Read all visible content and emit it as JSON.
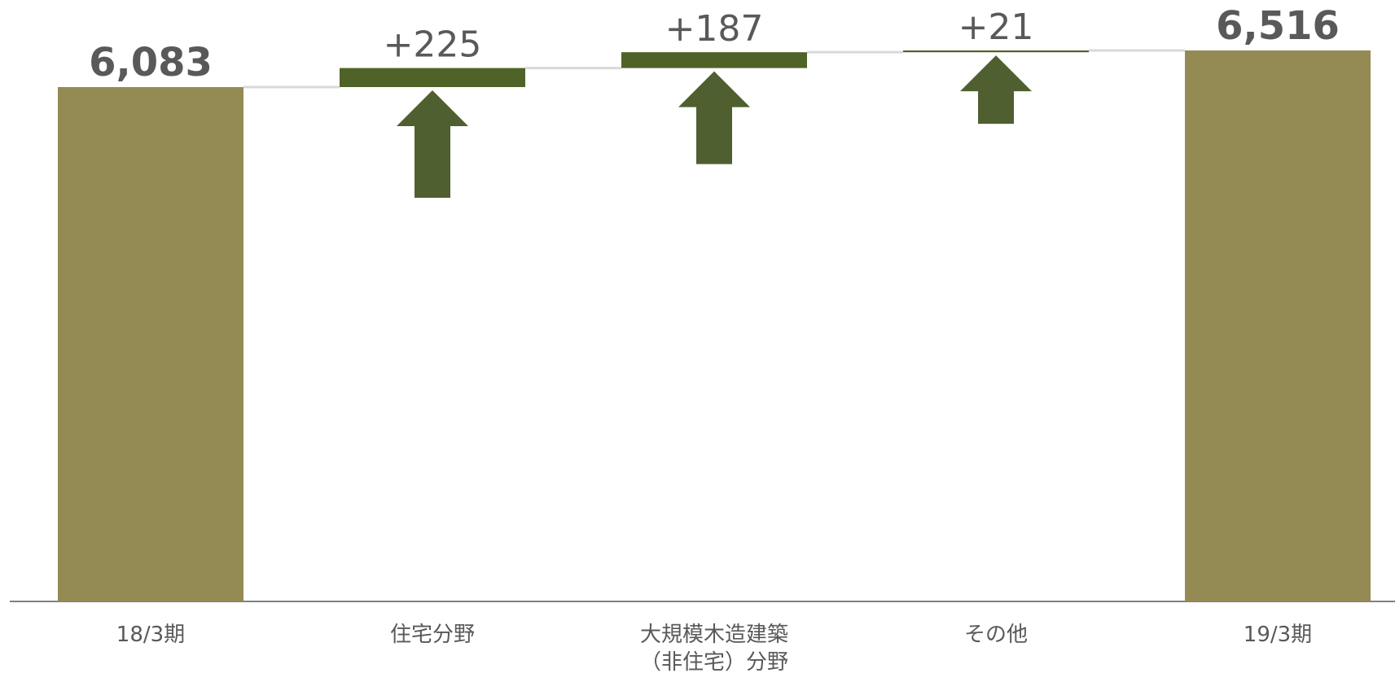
{
  "chart_data": {
    "type": "waterfall",
    "title": "",
    "xlabel": "",
    "ylabel": "",
    "categories": [
      [
        "18/3期"
      ],
      [
        "住宅分野"
      ],
      [
        "大規模木造建築",
        "（非住宅）分野"
      ],
      [
        "その他"
      ],
      [
        "19/3期"
      ]
    ],
    "kinds": [
      "total",
      "increase",
      "increase",
      "increase",
      "total"
    ],
    "values": [
      6083,
      225,
      187,
      21,
      6516
    ],
    "value_labels": [
      "6,083",
      "+225",
      "+187",
      "+21",
      "6,516"
    ],
    "up_arrow_on_increases": true,
    "grid": false,
    "legend": "none",
    "colors": {
      "total": "#948a54",
      "increase": "#4f6228",
      "arrow": "#4f5f2f",
      "connector": "#d9d9d9",
      "axis": "#808080",
      "label": "#595959"
    }
  }
}
